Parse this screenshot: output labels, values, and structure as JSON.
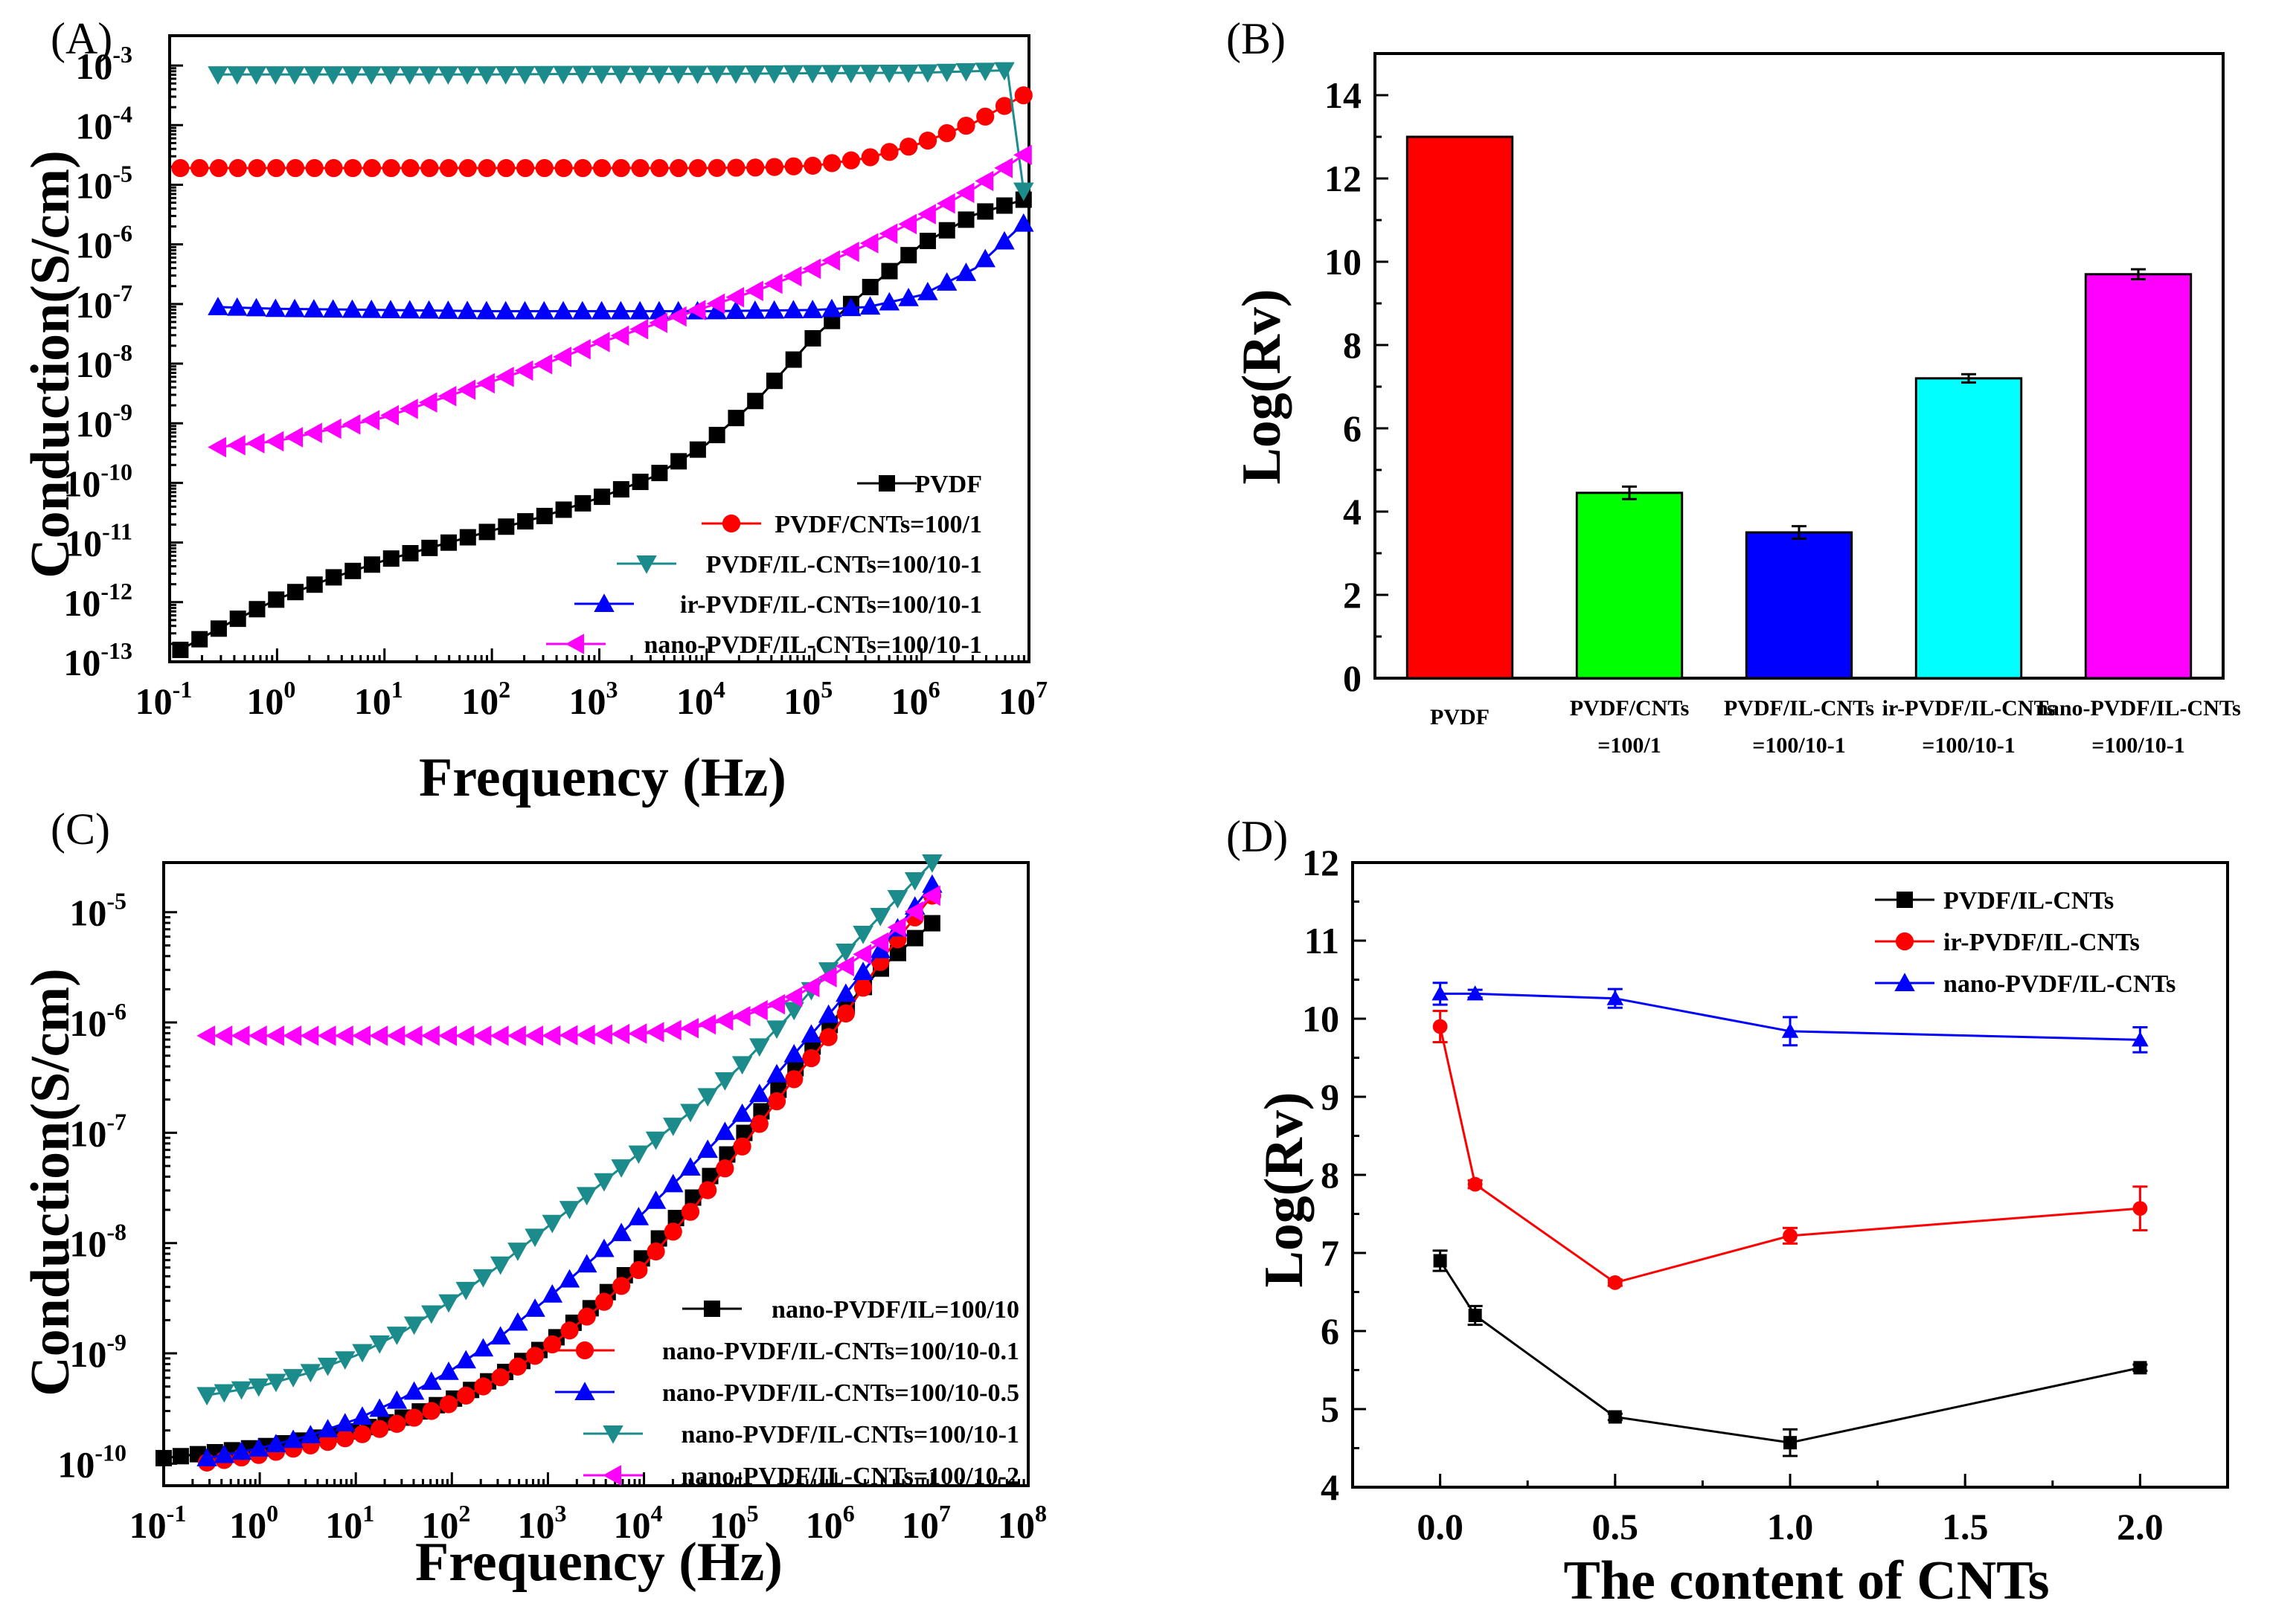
{
  "chart_data": [
    {
      "id": "A",
      "panel_label": "(A)",
      "type": "line",
      "xlabel": "Frequency (Hz)",
      "ylabel": "Conduction(S/cm)",
      "x_scale": "log",
      "y_scale": "log",
      "xlim": [
        -1,
        7
      ],
      "ylim": [
        -13,
        -2.5
      ],
      "xticks": [
        -1,
        0,
        1,
        2,
        3,
        4,
        5,
        6,
        7
      ],
      "yticks": [
        -13,
        -12,
        -11,
        -10,
        -9,
        -8,
        -7,
        -6,
        -5,
        -4,
        -3
      ],
      "tick_base": "10",
      "legend_position": "lower-right",
      "series": [
        {
          "name": "PVDF",
          "color": "#000000",
          "marker": "square",
          "x": [
            -0.9,
            -0.5,
            0,
            0.5,
            1,
            1.5,
            2,
            2.5,
            3,
            3.5,
            4,
            4.5,
            5,
            5.5,
            6,
            6.5,
            6.95
          ],
          "y": [
            -12.8,
            -12.4,
            -11.95,
            -11.6,
            -11.3,
            -11.05,
            -10.8,
            -10.55,
            -10.25,
            -9.9,
            -9.35,
            -8.55,
            -7.55,
            -6.75,
            -6.0,
            -5.5,
            -5.25
          ]
        },
        {
          "name": "PVDF/CNTs=100/1",
          "color": "#ff0000",
          "marker": "circle",
          "x": [
            -0.9,
            0,
            1,
            2,
            3,
            4,
            4.5,
            5,
            5.5,
            6,
            6.5,
            6.95
          ],
          "y": [
            -4.72,
            -4.72,
            -4.72,
            -4.72,
            -4.72,
            -4.72,
            -4.71,
            -4.68,
            -4.55,
            -4.3,
            -3.95,
            -3.5
          ]
        },
        {
          "name": "PVDF/IL-CNTs=100/10-1",
          "color": "#1c8b8b",
          "marker": "triangle-down",
          "x": [
            -0.55,
            0,
            1,
            2,
            3,
            4,
            5,
            6,
            6.8,
            6.95
          ],
          "y": [
            -3.15,
            -3.15,
            -3.15,
            -3.15,
            -3.14,
            -3.14,
            -3.13,
            -3.12,
            -3.08,
            -5.1
          ]
        },
        {
          "name": "ir-PVDF/IL-CNTs=100/10-1",
          "color": "#0000ff",
          "marker": "triangle-up",
          "x": [
            -0.55,
            0,
            1,
            2,
            3,
            4,
            5,
            5.5,
            6,
            6.5,
            6.95
          ],
          "y": [
            -7.05,
            -7.08,
            -7.1,
            -7.12,
            -7.12,
            -7.12,
            -7.1,
            -7.05,
            -6.85,
            -6.4,
            -5.65
          ]
        },
        {
          "name": "nano-PVDF/IL-CNTs=100/10-1",
          "color": "#ff00ff",
          "marker": "triangle-left",
          "x": [
            -0.55,
            0,
            0.5,
            1,
            1.5,
            2,
            2.5,
            3,
            3.5,
            4,
            4.5,
            5,
            5.5,
            6,
            6.5,
            6.95
          ],
          "y": [
            -9.4,
            -9.3,
            -9.1,
            -8.9,
            -8.6,
            -8.3,
            -8.0,
            -7.65,
            -7.35,
            -7.05,
            -6.75,
            -6.4,
            -6.0,
            -5.55,
            -5.05,
            -4.5
          ]
        }
      ]
    },
    {
      "id": "B",
      "panel_label": "(B)",
      "type": "bar",
      "ylabel": "Log(Rv)",
      "ylim": [
        0,
        15
      ],
      "yticks": [
        0,
        2,
        4,
        6,
        8,
        10,
        12,
        14
      ],
      "categories": [
        {
          "line1": "PVDF",
          "line2": ""
        },
        {
          "line1": "PVDF/CNTs",
          "line2": "=100/1"
        },
        {
          "line1": "PVDF/IL-CNTs",
          "line2": "=100/10-1"
        },
        {
          "line1": "ir-PVDF/IL-CNTs",
          "line2": "=100/10-1"
        },
        {
          "line1": "nano-PVDF/IL-CNTs",
          "line2": "=100/10-1"
        }
      ],
      "values": [
        13.0,
        4.45,
        3.5,
        7.2,
        9.7
      ],
      "errors": [
        0,
        0.15,
        0.15,
        0.1,
        0.12
      ],
      "colors": [
        "#ff0000",
        "#00ff00",
        "#0000ff",
        "#00ffff",
        "#ff00ff"
      ]
    },
    {
      "id": "C",
      "panel_label": "(C)",
      "type": "line",
      "xlabel": "Frequency (Hz)",
      "ylabel": "Conduction(S/cm)",
      "x_scale": "log",
      "y_scale": "log",
      "xlim": [
        -1,
        8
      ],
      "ylim": [
        -10.2,
        -4.55
      ],
      "xticks": [
        -1,
        0,
        1,
        2,
        3,
        4,
        5,
        6,
        7,
        8
      ],
      "yticks": [
        -10,
        -9,
        -8,
        -7,
        -6,
        -5
      ],
      "tick_base": "10",
      "legend_position": "lower-right",
      "series": [
        {
          "name": "nano-PVDF/IL=100/10",
          "color": "#000000",
          "marker": "square",
          "x": [
            -1,
            -0.5,
            0,
            0.5,
            1,
            1.5,
            2,
            2.5,
            3,
            3.5,
            4,
            4.5,
            5,
            5.5,
            6,
            6.5,
            7
          ],
          "y": [
            -9.95,
            -9.9,
            -9.85,
            -9.78,
            -9.7,
            -9.58,
            -9.42,
            -9.2,
            -8.92,
            -8.55,
            -8.12,
            -7.6,
            -7.05,
            -6.5,
            -5.95,
            -5.48,
            -5.1
          ]
        },
        {
          "name": "nano-PVDF/IL-CNTs=100/10-0.1",
          "color": "#ff0000",
          "marker": "circle",
          "x": [
            -0.55,
            0,
            0.5,
            1,
            1.5,
            2,
            2.5,
            3,
            3.5,
            4,
            4.5,
            5,
            5.5,
            6,
            6.5,
            7
          ],
          "y": [
            -9.99,
            -9.92,
            -9.84,
            -9.75,
            -9.62,
            -9.45,
            -9.22,
            -8.95,
            -8.6,
            -8.2,
            -7.7,
            -7.15,
            -6.58,
            -6.05,
            -5.4,
            -4.85
          ]
        },
        {
          "name": "nano-PVDF/IL-CNTs=100/10-0.5",
          "color": "#0000ff",
          "marker": "triangle-up",
          "x": [
            -0.55,
            0,
            0.5,
            1,
            1.5,
            2,
            2.5,
            3,
            3.5,
            4,
            4.5,
            5,
            5.5,
            6,
            6.5,
            7
          ],
          "y": [
            -9.95,
            -9.86,
            -9.75,
            -9.6,
            -9.4,
            -9.15,
            -8.85,
            -8.5,
            -8.12,
            -7.72,
            -7.3,
            -6.85,
            -6.35,
            -5.85,
            -5.3,
            -4.75
          ]
        },
        {
          "name": "nano-PVDF/IL-CNTs=100/10-1",
          "color": "#1c8b8b",
          "marker": "triangle-down",
          "x": [
            -0.55,
            0,
            0.5,
            1,
            1.5,
            2,
            2.5,
            3,
            3.5,
            4,
            4.5,
            5,
            5.5,
            6,
            6.5,
            7
          ],
          "y": [
            -9.38,
            -9.3,
            -9.18,
            -9.02,
            -8.8,
            -8.52,
            -8.2,
            -7.85,
            -7.5,
            -7.15,
            -6.8,
            -6.4,
            -5.95,
            -5.45,
            -5.0,
            -4.55
          ]
        },
        {
          "name": "nano-PVDF/IL-CNTs=100/10-2",
          "color": "#ff00ff",
          "marker": "triangle-left",
          "x": [
            -0.55,
            0,
            1,
            2,
            3,
            4,
            4.5,
            5,
            5.5,
            6,
            6.5,
            7
          ],
          "y": [
            -6.12,
            -6.12,
            -6.12,
            -6.12,
            -6.12,
            -6.1,
            -6.05,
            -5.95,
            -5.8,
            -5.55,
            -5.25,
            -4.85
          ]
        }
      ]
    },
    {
      "id": "D",
      "panel_label": "(D)",
      "type": "line",
      "xlabel": "The content of CNTs",
      "ylabel": "Log(Rv)",
      "xlim": [
        -0.25,
        2.25
      ],
      "ylim": [
        4,
        12
      ],
      "xticks": [
        0.0,
        0.5,
        1.0,
        1.5,
        2.0
      ],
      "xtick_labels": [
        "0.0",
        "0.5",
        "1.0",
        "1.5",
        "2.0"
      ],
      "yticks": [
        4,
        5,
        6,
        7,
        8,
        9,
        10,
        11,
        12
      ],
      "legend_position": "top-right",
      "series": [
        {
          "name": "PVDF/IL-CNTs",
          "color": "#000000",
          "marker": "square",
          "x": [
            0,
            0.1,
            0.5,
            1.0,
            2.0
          ],
          "y": [
            6.9,
            6.2,
            4.9,
            4.57,
            5.53
          ],
          "err": [
            0.13,
            0.12,
            0.04,
            0.17,
            0.04
          ]
        },
        {
          "name": "ir-PVDF/IL-CNTs",
          "color": "#ff0000",
          "marker": "circle",
          "x": [
            0,
            0.1,
            0.5,
            1.0,
            2.0
          ],
          "y": [
            9.9,
            7.88,
            6.62,
            7.22,
            7.57
          ],
          "err": [
            0.2,
            0.05,
            0.04,
            0.1,
            0.28
          ]
        },
        {
          "name": "nano-PVDF/IL-CNTs",
          "color": "#0000ff",
          "marker": "triangle-up",
          "x": [
            0,
            0.1,
            0.5,
            1.0,
            2.0
          ],
          "y": [
            10.32,
            10.32,
            10.26,
            9.84,
            9.73
          ],
          "err": [
            0.14,
            0.05,
            0.12,
            0.18,
            0.16
          ]
        }
      ]
    }
  ]
}
